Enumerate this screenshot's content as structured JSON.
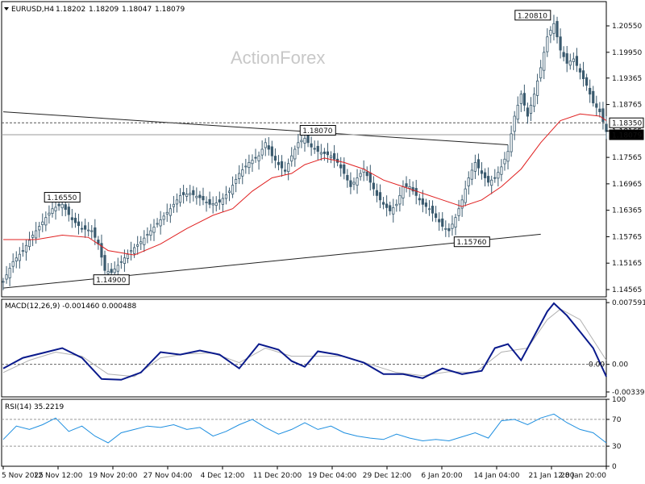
{
  "chart_data": {
    "type": "candlestick",
    "header": {
      "symbol": "EURUSD,H4",
      "open": "1.18202",
      "high": "1.18209",
      "low": "1.18047",
      "close": "1.18079"
    },
    "watermark": "ActionForex",
    "x_ticks": [
      "5 Nov 2025",
      "12 Nov 12:00",
      "19 Nov 20:00",
      "27 Nov 04:00",
      "4 Dec 12:00",
      "11 Dec 20:00",
      "19 Dec 04:00",
      "29 Dec 12:00",
      "6 Jan 20:00",
      "14 Jan 04:00",
      "21 Jan 12:00",
      "28 Jan 20:00"
    ],
    "price_panel": {
      "ylim": [
        1.144,
        1.211
      ],
      "y_ticks": [
        "1.20550",
        "1.19950",
        "1.19365",
        "1.18765",
        "1.18165",
        "1.17565",
        "1.16965",
        "1.16365",
        "1.15765",
        "1.15165",
        "1.14565"
      ],
      "price_path": [
        [
          0,
          1.1475
        ],
        [
          3,
          1.152
        ],
        [
          6,
          1.1545
        ],
        [
          9,
          1.158
        ],
        [
          12,
          1.161
        ],
        [
          15,
          1.164
        ],
        [
          18,
          1.165
        ],
        [
          21,
          1.1615
        ],
        [
          24,
          1.1595
        ],
        [
          27,
          1.159
        ],
        [
          29,
          1.156
        ],
        [
          31,
          1.15
        ],
        [
          33,
          1.1495
        ],
        [
          36,
          1.152
        ],
        [
          39,
          1.1545
        ],
        [
          42,
          1.1565
        ],
        [
          45,
          1.159
        ],
        [
          48,
          1.1615
        ],
        [
          51,
          1.164
        ],
        [
          54,
          1.167
        ],
        [
          57,
          1.1675
        ],
        [
          60,
          1.1665
        ],
        [
          63,
          1.165
        ],
        [
          66,
          1.1655
        ],
        [
          69,
          1.168
        ],
        [
          72,
          1.172
        ],
        [
          75,
          1.1745
        ],
        [
          78,
          1.176
        ],
        [
          80,
          1.179
        ],
        [
          82,
          1.176
        ],
        [
          84,
          1.174
        ],
        [
          86,
          1.1725
        ],
        [
          88,
          1.176
        ],
        [
          90,
          1.179
        ],
        [
          92,
          1.18
        ],
        [
          94,
          1.178
        ],
        [
          96,
          1.177
        ],
        [
          98,
          1.1765
        ],
        [
          100,
          1.176
        ],
        [
          102,
          1.1745
        ],
        [
          104,
          1.172
        ],
        [
          106,
          1.169
        ],
        [
          108,
          1.171
        ],
        [
          110,
          1.173
        ],
        [
          112,
          1.17
        ],
        [
          114,
          1.167
        ],
        [
          116,
          1.165
        ],
        [
          118,
          1.1635
        ],
        [
          120,
          1.165
        ],
        [
          122,
          1.169
        ],
        [
          124,
          1.169
        ],
        [
          126,
          1.167
        ],
        [
          128,
          1.165
        ],
        [
          130,
          1.164
        ],
        [
          132,
          1.162
        ],
        [
          134,
          1.16
        ],
        [
          136,
          1.159
        ],
        [
          138,
          1.162
        ],
        [
          140,
          1.166
        ],
        [
          142,
          1.171
        ],
        [
          144,
          1.1745
        ],
        [
          146,
          1.172
        ],
        [
          148,
          1.17
        ],
        [
          150,
          1.171
        ],
        [
          152,
          1.1735
        ],
        [
          154,
          1.177
        ],
        [
          156,
          1.185
        ],
        [
          158,
          1.19
        ],
        [
          160,
          1.185
        ],
        [
          162,
          1.19
        ],
        [
          164,
          1.196
        ],
        [
          166,
          1.203
        ],
        [
          168,
          1.206
        ],
        [
          170,
          1.2
        ],
        [
          172,
          1.197
        ],
        [
          174,
          1.198
        ],
        [
          176,
          1.195
        ],
        [
          178,
          1.192
        ],
        [
          180,
          1.188
        ],
        [
          182,
          1.186
        ],
        [
          184,
          1.1815
        ]
      ],
      "ma_path": [
        [
          0,
          1.157
        ],
        [
          10,
          1.157
        ],
        [
          18,
          1.158
        ],
        [
          26,
          1.1575
        ],
        [
          32,
          1.1545
        ],
        [
          40,
          1.1535
        ],
        [
          48,
          1.156
        ],
        [
          56,
          1.1595
        ],
        [
          64,
          1.1625
        ],
        [
          70,
          1.164
        ],
        [
          76,
          1.168
        ],
        [
          82,
          1.171
        ],
        [
          88,
          1.172
        ],
        [
          92,
          1.174
        ],
        [
          98,
          1.1755
        ],
        [
          104,
          1.1745
        ],
        [
          110,
          1.173
        ],
        [
          116,
          1.1705
        ],
        [
          122,
          1.169
        ],
        [
          128,
          1.1675
        ],
        [
          134,
          1.166
        ],
        [
          140,
          1.1645
        ],
        [
          146,
          1.166
        ],
        [
          152,
          1.169
        ],
        [
          158,
          1.173
        ],
        [
          164,
          1.179
        ],
        [
          170,
          1.184
        ],
        [
          176,
          1.1855
        ],
        [
          182,
          1.185
        ],
        [
          184,
          1.184
        ]
      ],
      "ma_color": "#e02020",
      "candle_color": "#3a5a6e",
      "trendlines": [
        {
          "x1": 0,
          "y1": 1.186,
          "x2": 154,
          "y2": 1.1785
        },
        {
          "x1": 0,
          "y1": 1.146,
          "x2": 164,
          "y2": 1.1582
        }
      ],
      "h_lines": [
        {
          "price": 1.1835,
          "style": "dashed",
          "label": "1.18350"
        },
        {
          "price": 1.18079,
          "style": "solid",
          "label": "1.18079",
          "current": true
        }
      ],
      "annotations": [
        {
          "x": 18,
          "price": 1.1655,
          "text": "1.16550"
        },
        {
          "x": 33,
          "price": 1.149,
          "text": "1.14900"
        },
        {
          "x": 96,
          "price": 1.1807,
          "text": "1.18070"
        },
        {
          "x": 143,
          "price": 1.1576,
          "text": "1.15760"
        },
        {
          "x": 166,
          "price": 1.2081,
          "text": "1.20810"
        }
      ]
    },
    "macd_panel": {
      "title": "MACD(12,26,9) -0.001460 0.000488",
      "ylim": [
        -0.004,
        0.008
      ],
      "y_ticks": [
        "0.007591",
        "0.00",
        "-0.003399"
      ],
      "zero_label": "0.00",
      "macd_path": [
        [
          0,
          -0.0005
        ],
        [
          6,
          0.0008
        ],
        [
          12,
          0.0014
        ],
        [
          18,
          0.002
        ],
        [
          24,
          0.0008
        ],
        [
          30,
          -0.0018
        ],
        [
          36,
          -0.0019
        ],
        [
          42,
          -0.001
        ],
        [
          48,
          0.0015
        ],
        [
          54,
          0.0012
        ],
        [
          60,
          0.0017
        ],
        [
          66,
          0.0012
        ],
        [
          72,
          -0.0005
        ],
        [
          78,
          0.0025
        ],
        [
          84,
          0.0018
        ],
        [
          88,
          0.0004
        ],
        [
          92,
          -0.0003
        ],
        [
          96,
          0.0016
        ],
        [
          102,
          0.0012
        ],
        [
          110,
          0.0002
        ],
        [
          116,
          -0.0012
        ],
        [
          122,
          -0.0012
        ],
        [
          128,
          -0.0017
        ],
        [
          134,
          -0.0005
        ],
        [
          140,
          -0.0012
        ],
        [
          146,
          -0.0008
        ],
        [
          150,
          0.002
        ],
        [
          154,
          0.0025
        ],
        [
          158,
          0.0005
        ],
        [
          162,
          0.0035
        ],
        [
          166,
          0.0065
        ],
        [
          168,
          0.0075
        ],
        [
          172,
          0.006
        ],
        [
          176,
          0.004
        ],
        [
          180,
          0.002
        ],
        [
          184,
          -0.0015
        ]
      ],
      "signal_path": [
        [
          0,
          -0.001
        ],
        [
          8,
          0.0005
        ],
        [
          16,
          0.0015
        ],
        [
          24,
          0.001
        ],
        [
          32,
          -0.0012
        ],
        [
          40,
          -0.0015
        ],
        [
          48,
          0.0008
        ],
        [
          56,
          0.0013
        ],
        [
          64,
          0.0014
        ],
        [
          72,
          0.0002
        ],
        [
          80,
          0.002
        ],
        [
          88,
          0.001
        ],
        [
          96,
          0.001
        ],
        [
          104,
          0.001
        ],
        [
          112,
          0.0
        ],
        [
          120,
          -0.001
        ],
        [
          128,
          -0.0014
        ],
        [
          136,
          -0.0009
        ],
        [
          144,
          -0.001
        ],
        [
          152,
          0.0015
        ],
        [
          160,
          0.002
        ],
        [
          166,
          0.0055
        ],
        [
          170,
          0.0068
        ],
        [
          176,
          0.0055
        ],
        [
          184,
          0.0005
        ]
      ],
      "macd_color": "#0a1a8c",
      "signal_color": "#b0b0b0"
    },
    "rsi_panel": {
      "title": "RSI(14) 35.2219",
      "ylim": [
        0,
        100
      ],
      "y_ticks": [
        "100",
        "70",
        "30",
        "0"
      ],
      "levels": [
        70,
        30
      ],
      "rsi_path": [
        [
          0,
          40
        ],
        [
          4,
          60
        ],
        [
          8,
          55
        ],
        [
          12,
          62
        ],
        [
          16,
          72
        ],
        [
          20,
          52
        ],
        [
          24,
          60
        ],
        [
          28,
          45
        ],
        [
          32,
          35
        ],
        [
          36,
          50
        ],
        [
          40,
          55
        ],
        [
          44,
          60
        ],
        [
          48,
          58
        ],
        [
          52,
          62
        ],
        [
          56,
          55
        ],
        [
          60,
          58
        ],
        [
          64,
          45
        ],
        [
          68,
          52
        ],
        [
          72,
          62
        ],
        [
          76,
          70
        ],
        [
          80,
          58
        ],
        [
          84,
          48
        ],
        [
          88,
          55
        ],
        [
          92,
          65
        ],
        [
          96,
          55
        ],
        [
          100,
          60
        ],
        [
          104,
          50
        ],
        [
          108,
          45
        ],
        [
          112,
          42
        ],
        [
          116,
          40
        ],
        [
          120,
          48
        ],
        [
          124,
          42
        ],
        [
          128,
          38
        ],
        [
          132,
          40
        ],
        [
          136,
          38
        ],
        [
          140,
          44
        ],
        [
          144,
          50
        ],
        [
          148,
          42
        ],
        [
          152,
          68
        ],
        [
          156,
          70
        ],
        [
          160,
          62
        ],
        [
          164,
          72
        ],
        [
          168,
          78
        ],
        [
          172,
          65
        ],
        [
          176,
          55
        ],
        [
          180,
          50
        ],
        [
          184,
          35
        ]
      ],
      "rsi_color": "#1e8fe0"
    }
  }
}
